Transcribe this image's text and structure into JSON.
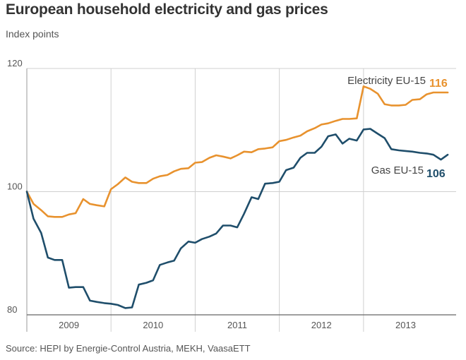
{
  "chart_data": {
    "type": "line",
    "title": "European household electricity and gas prices",
    "ylabel": "Index points",
    "ylim": [
      80,
      120
    ],
    "yticks": [
      80,
      100,
      120
    ],
    "xlim": [
      2008.5,
      2013.6
    ],
    "year_labels": [
      "2009",
      "2010",
      "2011",
      "2012",
      "2013"
    ],
    "year_centers": [
      2009.0,
      2010.0,
      2011.0,
      2012.0,
      2013.0
    ],
    "year_boundaries": [
      2009.5,
      2010.5,
      2011.5,
      2012.5
    ],
    "source": "Source: HEPI by Energie-Control Austria, MEKH, VaasaETT",
    "colors": {
      "electricity": "#e8922e",
      "gas": "#1f4e6b"
    },
    "series": [
      {
        "name": "Electricity EU-15",
        "end_label": "116",
        "x": [
          2008.5,
          2008.58,
          2008.67,
          2008.75,
          2008.83,
          2008.92,
          2009.0,
          2009.08,
          2009.17,
          2009.25,
          2009.33,
          2009.42,
          2009.5,
          2009.58,
          2009.67,
          2009.75,
          2009.83,
          2009.92,
          2010.0,
          2010.08,
          2010.17,
          2010.25,
          2010.33,
          2010.42,
          2010.5,
          2010.58,
          2010.67,
          2010.75,
          2010.83,
          2010.92,
          2011.0,
          2011.08,
          2011.17,
          2011.25,
          2011.33,
          2011.42,
          2011.5,
          2011.58,
          2011.67,
          2011.75,
          2011.83,
          2011.92,
          2012.0,
          2012.08,
          2012.17,
          2012.25,
          2012.33,
          2012.42,
          2012.5,
          2012.58,
          2012.67,
          2012.75,
          2012.83,
          2012.92,
          2013.0,
          2013.08,
          2013.17,
          2013.25,
          2013.33,
          2013.42,
          2013.5
        ],
        "values": [
          100.0,
          98.0,
          97.0,
          96.0,
          95.9,
          95.9,
          96.3,
          96.5,
          98.8,
          98.0,
          97.8,
          97.6,
          100.4,
          101.2,
          102.3,
          101.6,
          101.4,
          101.4,
          102.1,
          102.5,
          102.7,
          103.3,
          103.7,
          103.8,
          104.7,
          104.8,
          105.5,
          105.9,
          105.7,
          105.4,
          105.9,
          106.5,
          106.4,
          106.9,
          107.0,
          107.2,
          108.2,
          108.4,
          108.8,
          109.1,
          109.8,
          110.3,
          110.9,
          111.1,
          111.5,
          111.8,
          111.8,
          111.9,
          117.1,
          116.7,
          115.9,
          114.2,
          114.0,
          114.0,
          114.1,
          114.9,
          115.0,
          115.8,
          116.1,
          116.1,
          116.1
        ]
      },
      {
        "name": "Gas EU-15",
        "end_label": "106",
        "x": [
          2008.5,
          2008.58,
          2008.67,
          2008.75,
          2008.83,
          2008.92,
          2009.0,
          2009.08,
          2009.17,
          2009.25,
          2009.33,
          2009.42,
          2009.5,
          2009.58,
          2009.67,
          2009.75,
          2009.83,
          2009.92,
          2010.0,
          2010.08,
          2010.17,
          2010.25,
          2010.33,
          2010.42,
          2010.5,
          2010.58,
          2010.67,
          2010.75,
          2010.83,
          2010.92,
          2011.0,
          2011.08,
          2011.17,
          2011.25,
          2011.33,
          2011.42,
          2011.5,
          2011.58,
          2011.67,
          2011.75,
          2011.83,
          2011.92,
          2012.0,
          2012.08,
          2012.17,
          2012.25,
          2012.33,
          2012.42,
          2012.5,
          2012.58,
          2012.67,
          2012.75,
          2012.83,
          2012.92,
          2013.0,
          2013.08,
          2013.17,
          2013.25,
          2013.33,
          2013.42,
          2013.5
        ],
        "values": [
          100.0,
          95.6,
          93.3,
          89.3,
          88.9,
          88.9,
          84.4,
          84.5,
          84.5,
          82.3,
          82.1,
          81.9,
          81.8,
          81.6,
          81.1,
          81.2,
          84.9,
          85.2,
          85.6,
          88.1,
          88.5,
          88.8,
          90.8,
          91.9,
          91.7,
          92.3,
          92.7,
          93.2,
          94.5,
          94.5,
          94.2,
          96.4,
          99.1,
          98.8,
          101.3,
          101.4,
          101.6,
          103.5,
          103.9,
          105.5,
          106.3,
          106.3,
          107.3,
          109.0,
          109.3,
          107.8,
          108.6,
          108.3,
          110.1,
          110.2,
          109.4,
          108.7,
          106.9,
          106.7,
          106.6,
          106.5,
          106.3,
          106.2,
          106.0,
          105.2,
          106.0
        ]
      }
    ]
  }
}
